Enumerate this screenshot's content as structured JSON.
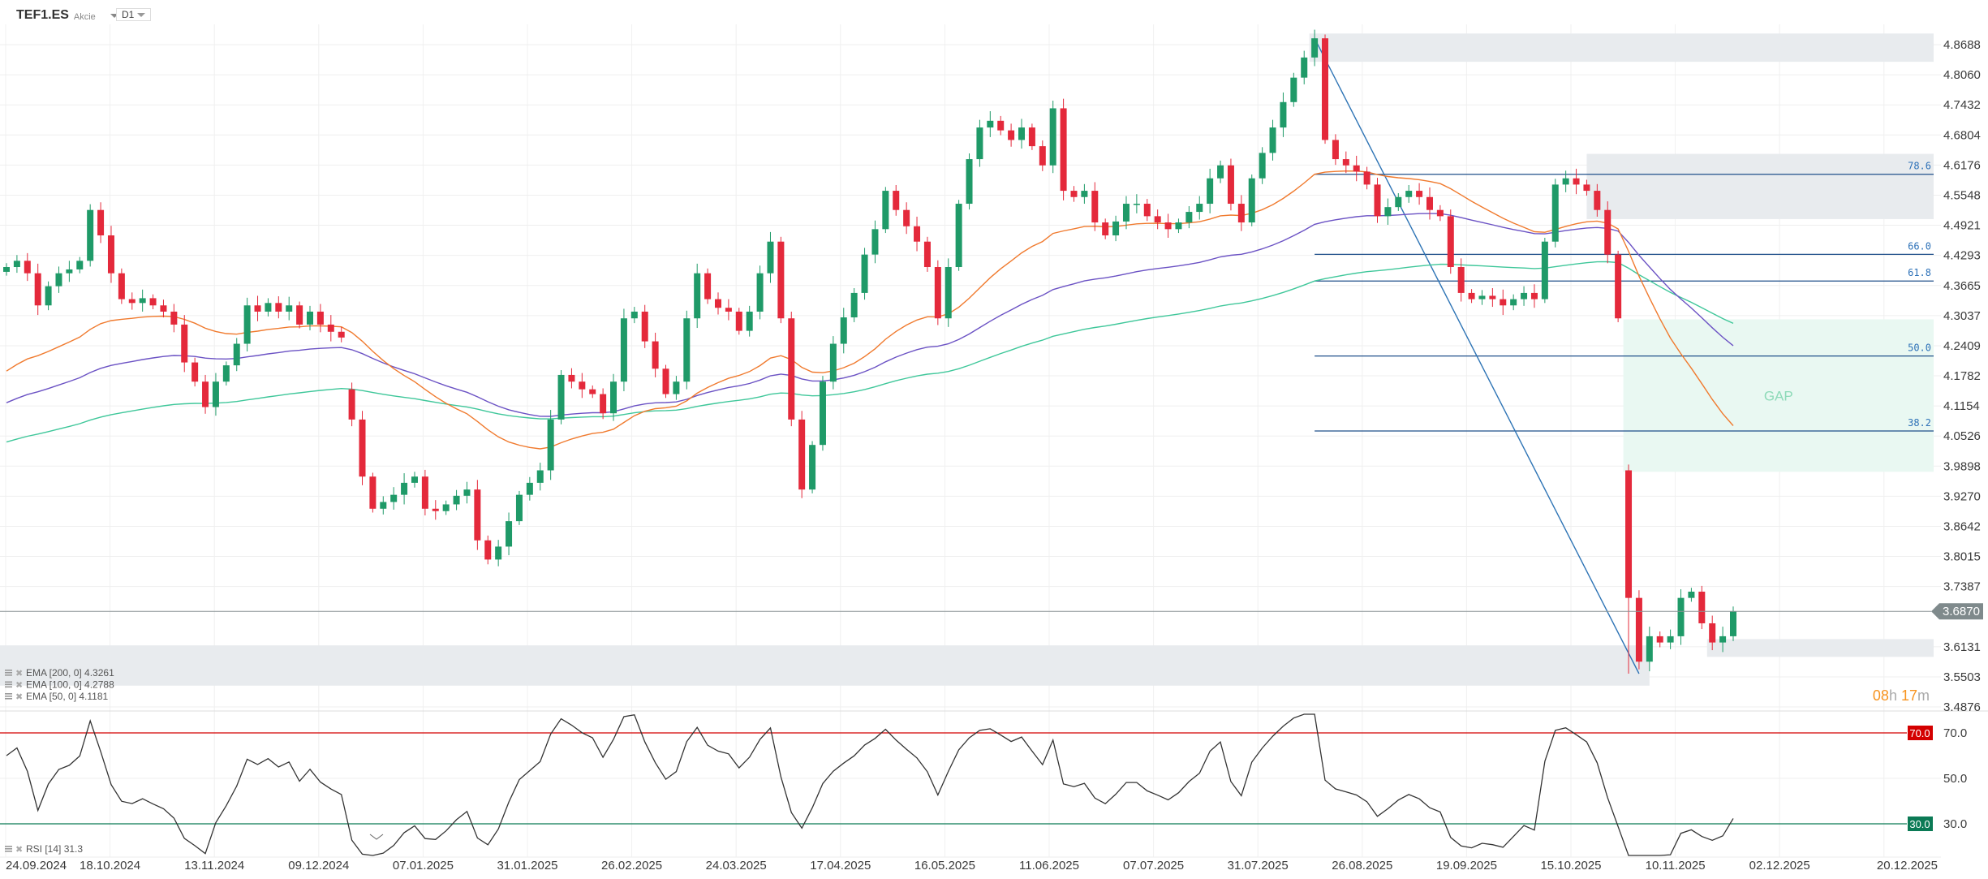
{
  "header": {
    "symbol": "TEF1.ES",
    "type": "Akcie",
    "timeframe": "D1"
  },
  "price_axis": [
    "4.8688",
    "4.8060",
    "4.7432",
    "4.6804",
    "4.6176",
    "4.5548",
    "4.4921",
    "4.4293",
    "4.3665",
    "4.3037",
    "4.2409",
    "4.1782",
    "4.1154",
    "4.0526",
    "3.9898",
    "3.9270",
    "3.8642",
    "3.8015",
    "3.7387",
    "3.6131",
    "3.5503",
    "3.4876"
  ],
  "date_axis": [
    "24.09.2024",
    "18.10.2024",
    "13.11.2024",
    "09.12.2024",
    "07.01.2025",
    "31.01.2025",
    "26.02.2025",
    "24.03.2025",
    "17.04.2025",
    "16.05.2025",
    "11.06.2025",
    "07.07.2025",
    "31.07.2025",
    "26.08.2025",
    "19.09.2025",
    "15.10.2025",
    "10.11.2025",
    "02.12.2025",
    "20.12.2025"
  ],
  "legend": [
    {
      "text": "EMA [200, 0] 4.3261"
    },
    {
      "text": "EMA [100, 0] 4.2788"
    },
    {
      "text": "EMA [50, 0] 4.1181"
    }
  ],
  "rsi_legend": "RSI [14] 31.3",
  "current_price": "3.6870",
  "countdown": {
    "hours": "08",
    "h": "h",
    "minutes": "17",
    "m": "m"
  },
  "rsi_axis": [
    "70.0",
    "50.0",
    "30.0"
  ],
  "rsi_level_labels": {
    "upper": "70.0",
    "lower": "30.0"
  },
  "gap_label": "GAP",
  "colors": {
    "up": "#1f9a68",
    "down": "#e4293b",
    "ema50": "#f07a2e",
    "ema100": "#6b52c4",
    "ema200": "#3fc79a",
    "fib": "#1f4f8a",
    "rsi_upper": "#d40000",
    "rsi_lower": "#0b7a55",
    "price_tag": "#7f8a8c"
  },
  "chart_data": {
    "type": "candlestick",
    "closes": [
      4.405,
      4.418,
      4.392,
      4.325,
      4.365,
      4.392,
      4.4,
      4.418,
      4.524,
      4.471,
      4.392,
      4.338,
      4.33,
      4.34,
      4.325,
      4.312,
      4.285,
      4.206,
      4.166,
      4.113,
      4.166,
      4.2,
      4.245,
      4.325,
      4.312,
      4.33,
      4.312,
      4.325,
      4.285,
      4.312,
      4.285,
      4.27,
      4.258,
      4.087,
      3.968,
      3.901,
      3.915,
      3.93,
      3.955,
      3.968,
      3.901,
      3.896,
      3.91,
      3.928,
      3.941,
      3.835,
      3.795,
      3.822,
      3.875,
      3.93,
      3.955,
      3.981,
      4.087,
      4.18,
      4.166,
      4.15,
      4.14,
      4.1,
      4.166,
      4.298,
      4.312,
      4.25,
      4.193,
      4.14,
      4.166,
      4.298,
      4.392,
      4.338,
      4.32,
      4.312,
      4.272,
      4.312,
      4.392,
      4.458,
      4.298,
      4.087,
      3.941,
      4.034,
      4.166,
      4.245,
      4.3,
      4.351,
      4.431,
      4.484,
      4.564,
      4.524,
      4.49,
      4.458,
      4.405,
      4.298,
      4.405,
      4.537,
      4.63,
      4.696,
      4.71,
      4.69,
      4.67,
      4.696,
      4.657,
      4.617,
      4.736,
      4.564,
      4.551,
      4.564,
      4.498,
      4.471,
      4.5,
      4.537,
      4.537,
      4.511,
      4.498,
      4.484,
      4.498,
      4.52,
      4.537,
      4.59,
      4.617,
      4.537,
      4.498,
      4.59,
      4.643,
      4.696,
      4.749,
      4.8,
      4.842,
      4.882,
      4.67,
      4.63,
      4.617,
      4.604,
      4.577,
      4.511,
      4.53,
      4.551,
      4.564,
      4.551,
      4.524,
      4.511,
      4.405,
      4.351,
      4.338,
      4.345,
      4.338,
      4.325,
      4.338,
      4.351,
      4.338,
      4.458,
      4.577,
      4.59,
      4.577,
      4.564,
      4.524,
      4.431,
      4.298,
      3.715,
      3.582,
      3.635,
      3.622,
      3.635,
      3.715,
      3.728,
      3.662,
      3.622,
      3.635,
      3.687
    ],
    "gap_opens": {
      "33": 4.15,
      "155": 3.981
    },
    "ema": [
      {
        "name": "EMA [200, 0]",
        "period": 120,
        "seed": 4.034,
        "color_key": "ema200"
      },
      {
        "name": "EMA [100, 0]",
        "period": 64,
        "seed": 4.113,
        "color_key": "ema100"
      },
      {
        "name": "EMA [50, 0]",
        "period": 32,
        "seed": 4.174,
        "color_key": "ema50"
      }
    ],
    "fib": {
      "high": 4.882,
      "low": 3.557,
      "high_bar": 125,
      "low_bar": 156,
      "levels": [
        {
          "ratio": 0.786,
          "label": "78.6"
        },
        {
          "ratio": 0.66,
          "label": "66.0"
        },
        {
          "ratio": 0.618,
          "label": "61.8"
        },
        {
          "ratio": 0.5,
          "label": "50.0"
        },
        {
          "ratio": 0.382,
          "label": "38.2"
        }
      ]
    },
    "zones": [
      {
        "name": "resistance-zone-top",
        "from_bar": 124.5,
        "to_bar": null,
        "top": 4.892,
        "bottom": 4.833,
        "color": "#e8ebee"
      },
      {
        "name": "resistance-zone-786",
        "from_bar": 151,
        "to_bar": null,
        "top": 4.641,
        "bottom": 4.505,
        "color": "#e8ebee"
      },
      {
        "name": "gap-zone",
        "from_bar": 154.5,
        "to_bar": null,
        "top": 4.296,
        "bottom": 3.978,
        "color": "#e9f8f2"
      },
      {
        "name": "support-zone-left",
        "from_bar": -1,
        "to_bar": 157,
        "top": 3.616,
        "bottom": 3.532,
        "color": "#e8ebee"
      },
      {
        "name": "support-zone-right",
        "from_bar": 162.5,
        "to_bar": null,
        "top": 3.629,
        "bottom": 3.592,
        "color": "#e8ebee"
      }
    ],
    "current": 3.687,
    "rsi_period": 8,
    "rsi_levels": [
      70,
      30
    ],
    "price_range": [
      3.4876,
      4.8688
    ],
    "rsi_range": [
      30,
      70
    ]
  }
}
